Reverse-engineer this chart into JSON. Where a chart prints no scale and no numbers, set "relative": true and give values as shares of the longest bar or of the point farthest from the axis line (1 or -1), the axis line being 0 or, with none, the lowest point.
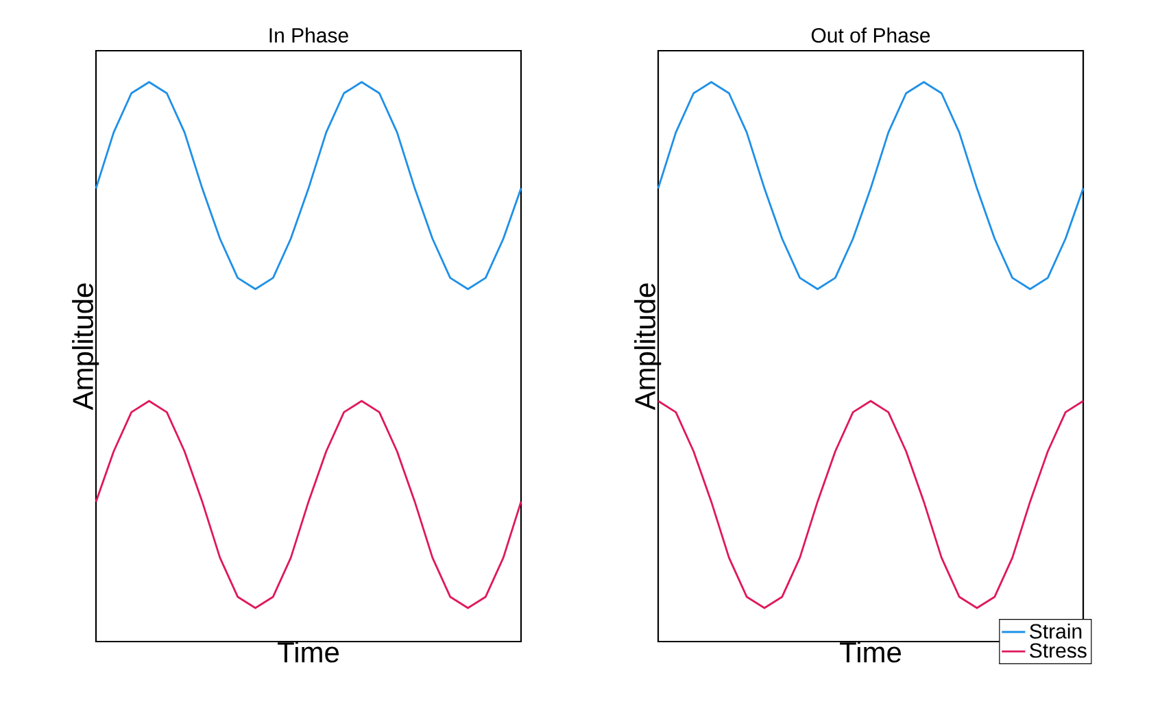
{
  "chart_data": [
    {
      "type": "line",
      "title": "In Phase",
      "xlabel": "Time",
      "ylabel": "Amplitude",
      "relative": true,
      "categories": [
        null,
        null,
        null,
        null,
        null,
        null,
        null,
        null,
        null,
        null,
        null,
        null,
        null,
        null,
        null,
        null,
        null,
        null,
        null,
        null,
        null,
        null,
        null,
        null,
        null
      ],
      "series": [
        {
          "color": "#1e90e8",
          "values": [
            0.81,
            0.91,
            0.98,
            1.0,
            0.98,
            0.91,
            0.81,
            0.72,
            0.65,
            0.63,
            0.65,
            0.72,
            0.81,
            0.91,
            0.98,
            1.0,
            0.98,
            0.91,
            0.81,
            0.72,
            0.65,
            0.63,
            0.65,
            0.72,
            0.81
          ]
        },
        {
          "color": "#e0185a",
          "values": [
            0.25,
            0.34,
            0.41,
            0.43,
            0.41,
            0.34,
            0.25,
            0.15,
            0.08,
            0.06,
            0.08,
            0.15,
            0.25,
            0.34,
            0.41,
            0.43,
            0.41,
            0.34,
            0.25,
            0.15,
            0.08,
            0.06,
            0.08,
            0.15,
            0.25
          ]
        }
      ]
    },
    {
      "type": "line",
      "title": "Out of Phase",
      "xlabel": "Time",
      "ylabel": "Amplitude",
      "relative": true,
      "legend": "bottom right",
      "categories": [
        null,
        null,
        null,
        null,
        null,
        null,
        null,
        null,
        null,
        null,
        null,
        null,
        null,
        null,
        null,
        null,
        null,
        null,
        null,
        null,
        null,
        null,
        null,
        null,
        null
      ],
      "series": [
        {
          "name": "Strain",
          "color": "#1e90e8",
          "values": [
            0.81,
            0.91,
            0.98,
            1.0,
            0.98,
            0.91,
            0.81,
            0.72,
            0.65,
            0.63,
            0.65,
            0.72,
            0.81,
            0.91,
            0.98,
            1.0,
            0.98,
            0.91,
            0.81,
            0.72,
            0.65,
            0.63,
            0.65,
            0.72,
            0.81
          ]
        },
        {
          "name": "Stress",
          "color": "#e0185a",
          "values": [
            0.43,
            0.41,
            0.34,
            0.25,
            0.15,
            0.08,
            0.06,
            0.08,
            0.15,
            0.25,
            0.34,
            0.41,
            0.43,
            0.41,
            0.34,
            0.25,
            0.15,
            0.08,
            0.06,
            0.08,
            0.15,
            0.25,
            0.34,
            0.41,
            0.43
          ]
        }
      ]
    }
  ]
}
